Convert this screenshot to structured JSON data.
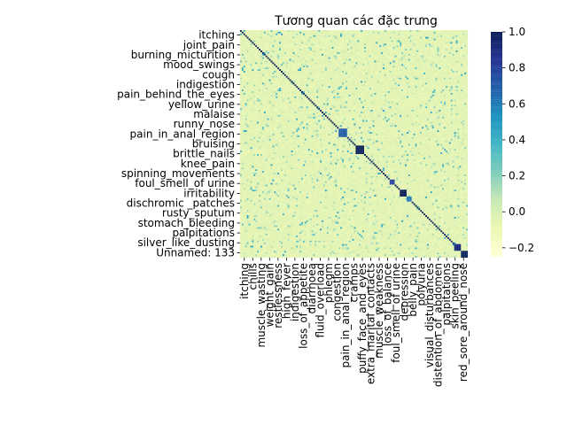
{
  "chart_data": {
    "type": "heatmap",
    "title": "Tương quan các đặc trưng",
    "matrix_size": 134,
    "colormap": "YlGnBu",
    "colors": {
      "low": "#ffffd9",
      "mid_low": "#edf8b1",
      "mid": "#7fcdbb",
      "mid_high": "#1d91c0",
      "high": "#081d58",
      "background": "#ffffff"
    },
    "value_range": [
      -0.25,
      1.0
    ],
    "diagonal_value": 1.0,
    "y_tick_labels": [
      "itching",
      "joint_pain",
      "burning_micturition",
      "mood_swings",
      "cough",
      "indigestion",
      "pain_behind_the_eyes",
      "yellow_urine",
      "malaise",
      "runny_nose",
      "pain_in_anal_region",
      "bruising",
      "brittle_nails",
      "knee_pain",
      "spinning_movements",
      "foul_smell_of urine",
      "irritability",
      "dischromic _patches",
      "rusty_sputum",
      "stomach_bleeding",
      "palpitations",
      "silver_like_dusting",
      "Unnamed: 133"
    ],
    "x_tick_labels": [
      "itching",
      "chills",
      "muscle_wasting",
      "weight_gain",
      "restlessness",
      "high_fever",
      "indigestion",
      "loss_of_appetite",
      "diarrhoea",
      "fluid_overload",
      "phlegm",
      "congestion",
      "pain_in_anal_region",
      "cramps",
      "puffy_face_and_eyes",
      "extra_marital_contacts",
      "muscle_weakness",
      "loss_of_balance",
      "foul_smell_of urine",
      "depression",
      "belly_pain",
      "polyuria",
      "visual_disturbances",
      "distention_of_abdomen",
      "palpitations",
      "skin_peeling",
      "red_sore_around_nose"
    ],
    "colorbar": {
      "ticks": [
        -0.2,
        0.0,
        0.2,
        0.4,
        0.6,
        0.8,
        1.0
      ],
      "tick_labels": [
        "−0.2",
        "0.0",
        "0.2",
        "0.4",
        "0.6",
        "0.8",
        "1.0"
      ]
    },
    "strong_blocks": [
      {
        "rows": [
          68,
          72
        ],
        "cols": [
          68,
          72
        ],
        "value": 1.0
      },
      {
        "rows": [
          94,
          97
        ],
        "cols": [
          94,
          97
        ],
        "value": 1.0
      },
      {
        "rows": [
          126,
          129
        ],
        "cols": [
          126,
          129
        ],
        "value": 0.9
      },
      {
        "rows": [
          130,
          133
        ],
        "cols": [
          130,
          133
        ],
        "value": 1.0
      },
      {
        "rows": [
          58,
          62
        ],
        "cols": [
          58,
          62
        ],
        "value": 0.7
      },
      {
        "rows": [
          88,
          90
        ],
        "cols": [
          88,
          90
        ],
        "value": 0.8
      },
      {
        "rows": [
          98,
          100
        ],
        "cols": [
          98,
          100
        ],
        "value": 0.6
      }
    ],
    "grid": false,
    "legend": "none"
  }
}
